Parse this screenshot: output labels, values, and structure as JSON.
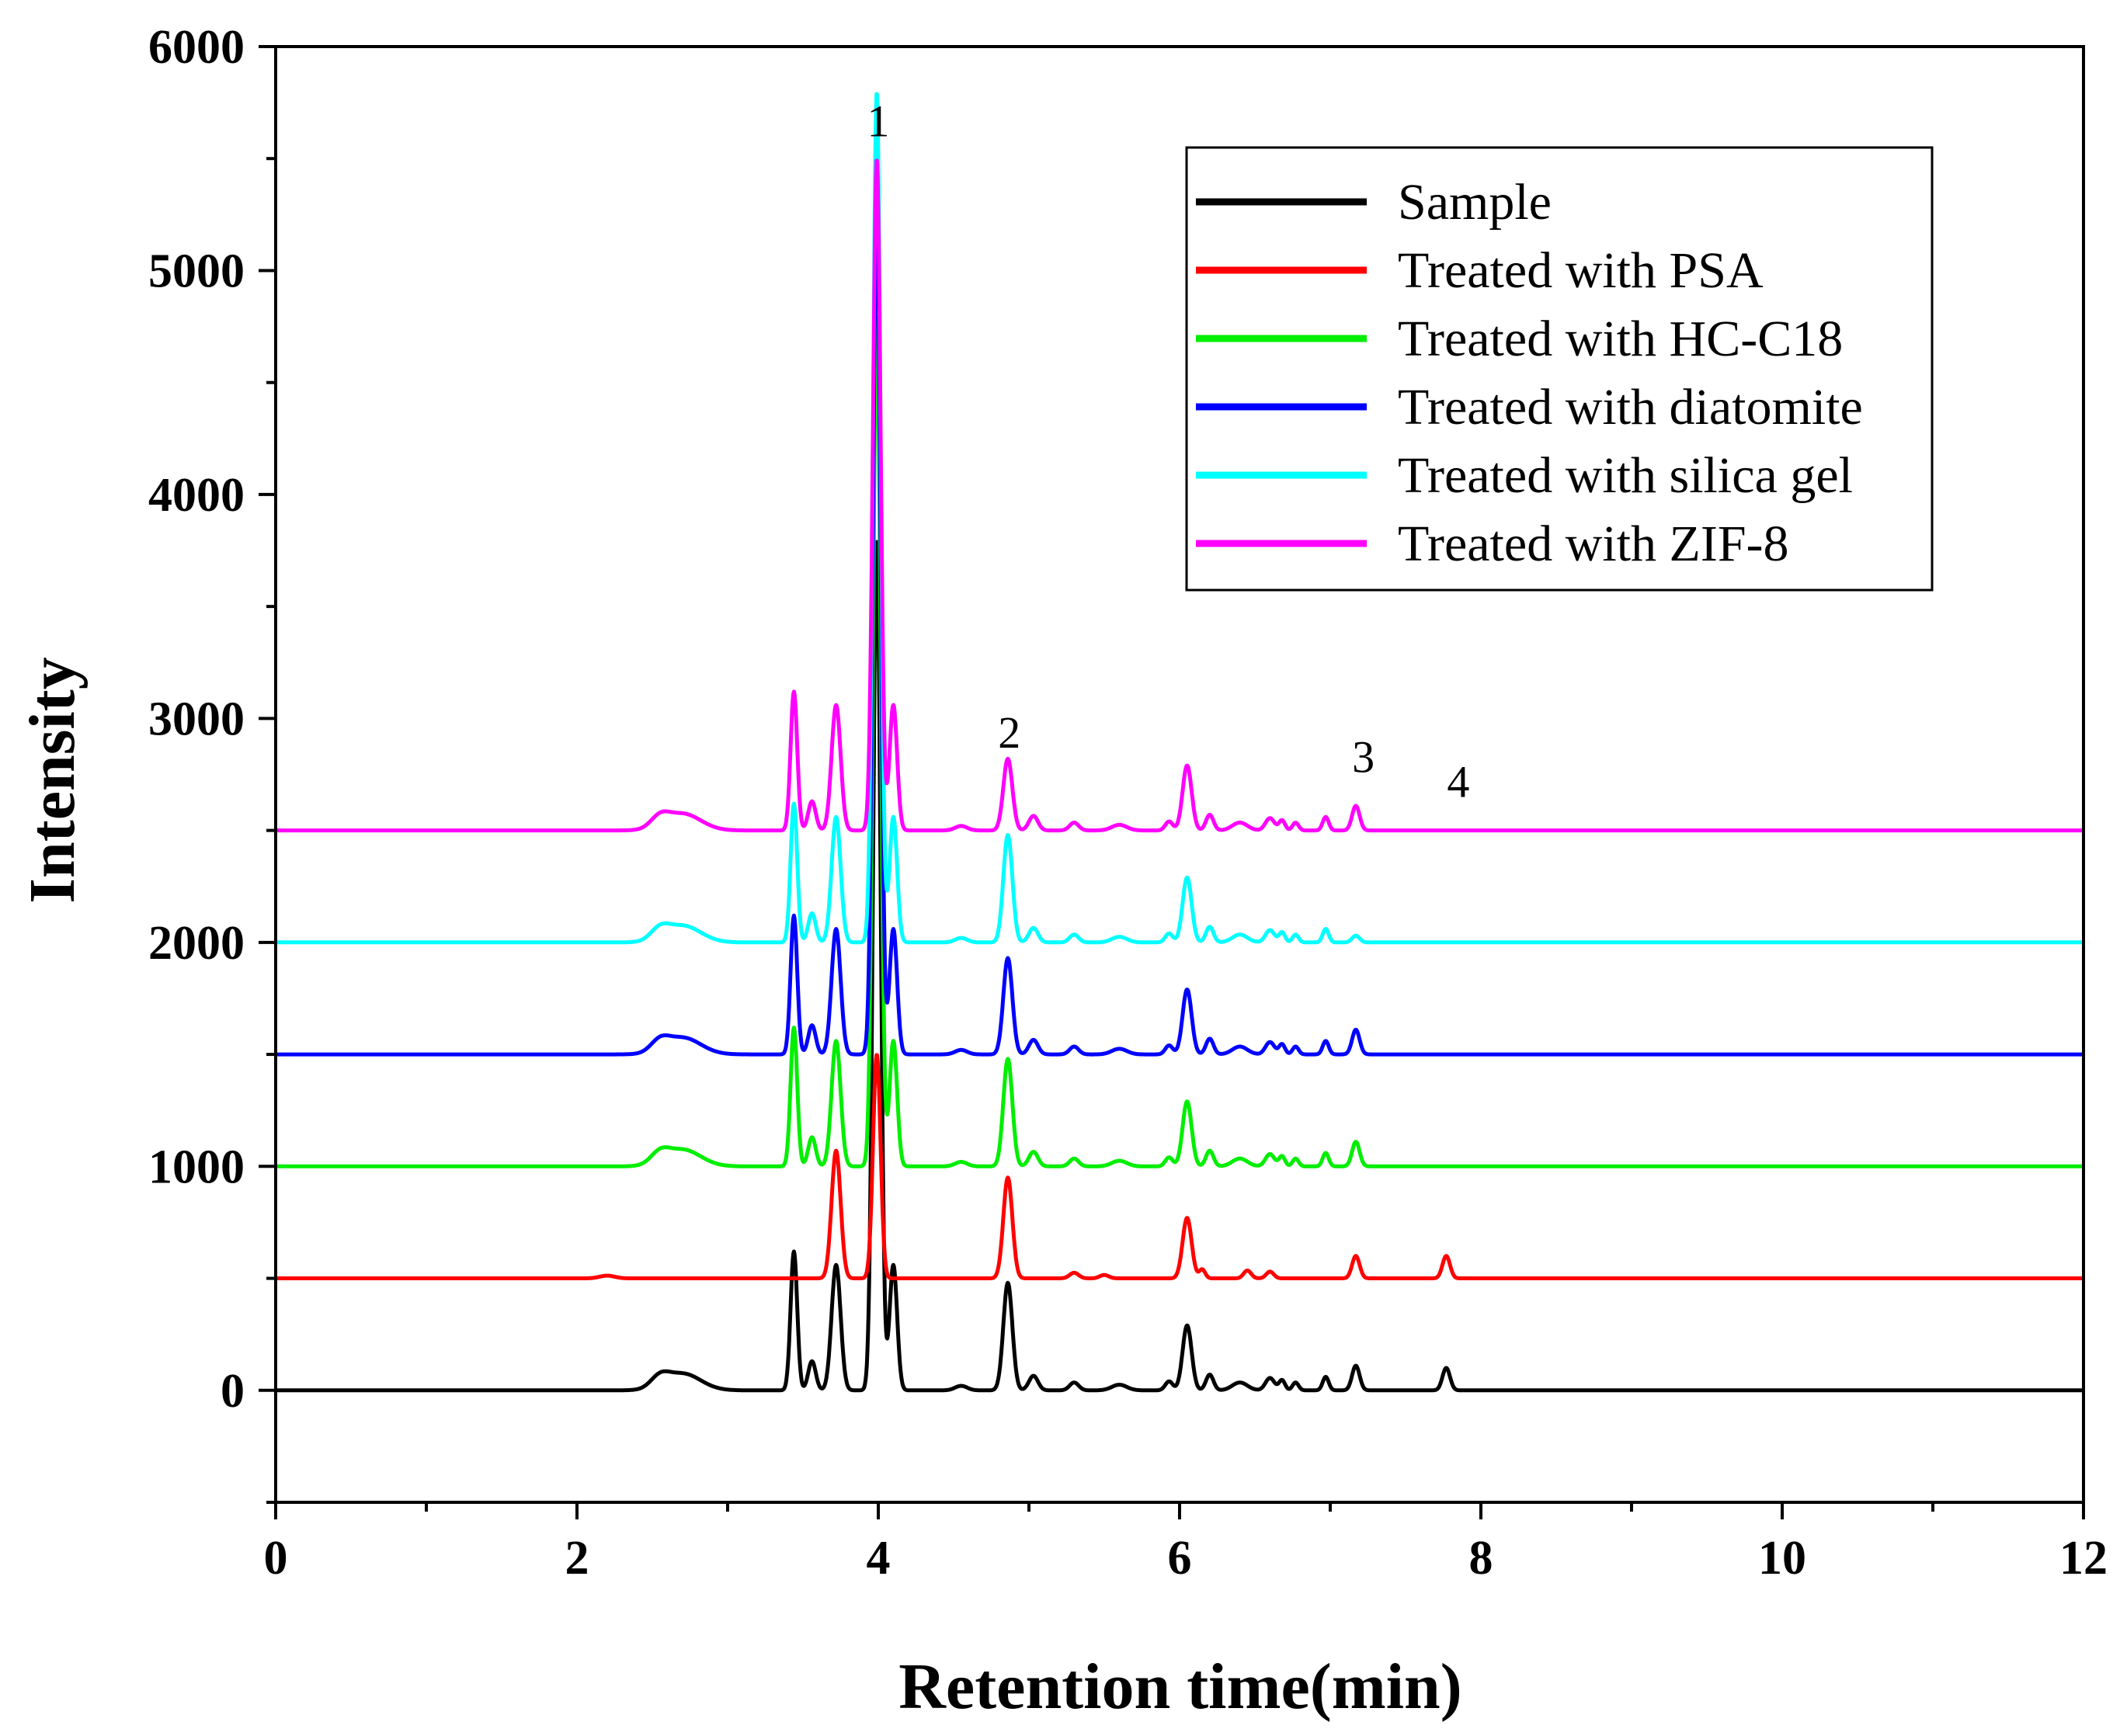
{
  "chart_data": {
    "type": "line",
    "xlabel": "Retention time(min)",
    "ylabel": "Intensity",
    "xlim": [
      0,
      12
    ],
    "ylim": [
      -500,
      6000
    ],
    "x_ticks": [
      0,
      2,
      4,
      6,
      8,
      10,
      12
    ],
    "y_ticks": [
      0,
      1000,
      2000,
      3000,
      4000,
      5000,
      6000
    ],
    "x_tick_labels": [
      "0",
      "2",
      "4",
      "6",
      "8",
      "10",
      "12"
    ],
    "y_tick_labels": [
      "0",
      "1000",
      "2000",
      "3000",
      "4000",
      "5000",
      "6000"
    ],
    "legend_position": "top-right",
    "peak_annotations": [
      {
        "label": "1",
        "x": 4.0,
        "y": 5600
      },
      {
        "label": "2",
        "x": 4.87,
        "y": 2870
      },
      {
        "label": "3",
        "x": 7.22,
        "y": 2760
      },
      {
        "label": "4",
        "x": 7.85,
        "y": 2650
      }
    ],
    "series": [
      {
        "name": "Sample",
        "color": "#000000",
        "baseline": 0,
        "peaks": [
          [
            2.55,
            45,
            0.06
          ],
          [
            2.7,
            75,
            0.12
          ],
          [
            3.44,
            620,
            0.022
          ],
          [
            3.56,
            130,
            0.025
          ],
          [
            3.72,
            560,
            0.03
          ],
          [
            3.99,
            3800,
            0.025
          ],
          [
            4.1,
            560,
            0.025
          ],
          [
            4.55,
            20,
            0.04
          ],
          [
            4.86,
            480,
            0.03
          ],
          [
            5.03,
            65,
            0.03
          ],
          [
            5.3,
            35,
            0.03
          ],
          [
            5.6,
            25,
            0.05
          ],
          [
            5.93,
            40,
            0.025
          ],
          [
            6.05,
            290,
            0.03
          ],
          [
            6.2,
            70,
            0.025
          ],
          [
            6.4,
            35,
            0.05
          ],
          [
            6.6,
            55,
            0.03
          ],
          [
            6.68,
            45,
            0.02
          ],
          [
            6.77,
            35,
            0.02
          ],
          [
            6.97,
            60,
            0.02
          ],
          [
            7.17,
            110,
            0.025
          ],
          [
            7.77,
            100,
            0.025
          ]
        ]
      },
      {
        "name": "Treated with PSA",
        "color": "#ff0000",
        "baseline": 500,
        "peaks": [
          [
            2.2,
            12,
            0.05
          ],
          [
            3.72,
            570,
            0.03
          ],
          [
            3.99,
            1000,
            0.025
          ],
          [
            4.86,
            450,
            0.03
          ],
          [
            5.3,
            25,
            0.03
          ],
          [
            5.5,
            15,
            0.03
          ],
          [
            6.05,
            270,
            0.03
          ],
          [
            6.15,
            40,
            0.02
          ],
          [
            6.45,
            35,
            0.025
          ],
          [
            6.6,
            30,
            0.025
          ],
          [
            7.17,
            100,
            0.025
          ],
          [
            7.77,
            100,
            0.025
          ]
        ]
      },
      {
        "name": "Treated with HC-C18",
        "color": "#00ee00",
        "baseline": 1000,
        "peaks": [
          [
            2.55,
            45,
            0.06
          ],
          [
            2.7,
            75,
            0.12
          ],
          [
            3.44,
            620,
            0.022
          ],
          [
            3.56,
            130,
            0.025
          ],
          [
            3.72,
            560,
            0.03
          ],
          [
            3.99,
            3800,
            0.025
          ],
          [
            4.1,
            560,
            0.025
          ],
          [
            4.55,
            20,
            0.04
          ],
          [
            4.86,
            480,
            0.03
          ],
          [
            5.03,
            65,
            0.03
          ],
          [
            5.3,
            35,
            0.03
          ],
          [
            5.6,
            25,
            0.05
          ],
          [
            5.93,
            40,
            0.025
          ],
          [
            6.05,
            290,
            0.03
          ],
          [
            6.2,
            70,
            0.025
          ],
          [
            6.4,
            35,
            0.05
          ],
          [
            6.6,
            55,
            0.03
          ],
          [
            6.68,
            45,
            0.02
          ],
          [
            6.77,
            35,
            0.02
          ],
          [
            6.97,
            60,
            0.02
          ],
          [
            7.17,
            110,
            0.025
          ]
        ]
      },
      {
        "name": "Treated with diatomite",
        "color": "#0000ff",
        "baseline": 1500,
        "peaks": [
          [
            2.55,
            45,
            0.06
          ],
          [
            2.7,
            75,
            0.12
          ],
          [
            3.44,
            620,
            0.022
          ],
          [
            3.56,
            130,
            0.025
          ],
          [
            3.72,
            560,
            0.03
          ],
          [
            3.99,
            3800,
            0.025
          ],
          [
            4.1,
            560,
            0.025
          ],
          [
            4.55,
            20,
            0.04
          ],
          [
            4.86,
            430,
            0.03
          ],
          [
            5.03,
            65,
            0.03
          ],
          [
            5.3,
            35,
            0.03
          ],
          [
            5.6,
            25,
            0.05
          ],
          [
            5.93,
            40,
            0.025
          ],
          [
            6.05,
            290,
            0.03
          ],
          [
            6.2,
            70,
            0.025
          ],
          [
            6.4,
            35,
            0.05
          ],
          [
            6.6,
            55,
            0.03
          ],
          [
            6.68,
            45,
            0.02
          ],
          [
            6.77,
            35,
            0.02
          ],
          [
            6.97,
            60,
            0.02
          ],
          [
            7.17,
            110,
            0.025
          ]
        ]
      },
      {
        "name": "Treated with silica gel",
        "color": "#00ffff",
        "baseline": 2000,
        "peaks": [
          [
            2.55,
            45,
            0.06
          ],
          [
            2.7,
            75,
            0.12
          ],
          [
            3.44,
            620,
            0.022
          ],
          [
            3.56,
            130,
            0.025
          ],
          [
            3.72,
            560,
            0.03
          ],
          [
            3.99,
            3800,
            0.025
          ],
          [
            4.1,
            560,
            0.025
          ],
          [
            4.55,
            20,
            0.04
          ],
          [
            4.86,
            480,
            0.03
          ],
          [
            5.03,
            65,
            0.03
          ],
          [
            5.3,
            35,
            0.03
          ],
          [
            5.6,
            25,
            0.05
          ],
          [
            5.93,
            40,
            0.025
          ],
          [
            6.05,
            290,
            0.03
          ],
          [
            6.2,
            70,
            0.025
          ],
          [
            6.4,
            35,
            0.05
          ],
          [
            6.6,
            55,
            0.03
          ],
          [
            6.68,
            45,
            0.02
          ],
          [
            6.77,
            35,
            0.02
          ],
          [
            6.97,
            60,
            0.02
          ],
          [
            7.17,
            30,
            0.025
          ]
        ]
      },
      {
        "name": "Treated with ZIF-8",
        "color": "#ff00ff",
        "baseline": 2500,
        "peaks": [
          [
            2.55,
            45,
            0.06
          ],
          [
            2.7,
            75,
            0.12
          ],
          [
            3.44,
            620,
            0.022
          ],
          [
            3.56,
            130,
            0.025
          ],
          [
            3.72,
            560,
            0.03
          ],
          [
            3.99,
            3000,
            0.025
          ],
          [
            4.1,
            560,
            0.025
          ],
          [
            4.55,
            20,
            0.04
          ],
          [
            4.86,
            320,
            0.03
          ],
          [
            5.03,
            65,
            0.03
          ],
          [
            5.3,
            35,
            0.03
          ],
          [
            5.6,
            25,
            0.05
          ],
          [
            5.93,
            40,
            0.025
          ],
          [
            6.05,
            290,
            0.03
          ],
          [
            6.2,
            70,
            0.025
          ],
          [
            6.4,
            35,
            0.05
          ],
          [
            6.6,
            55,
            0.03
          ],
          [
            6.68,
            45,
            0.02
          ],
          [
            6.77,
            35,
            0.02
          ],
          [
            6.97,
            60,
            0.02
          ],
          [
            7.17,
            110,
            0.025
          ]
        ]
      }
    ]
  }
}
